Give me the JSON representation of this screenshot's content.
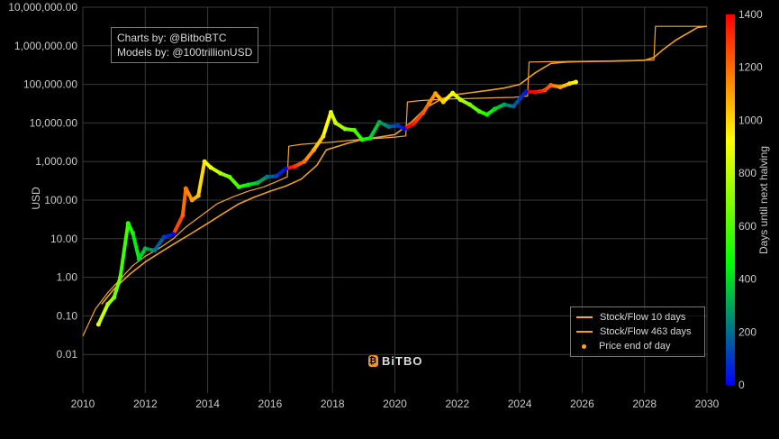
{
  "chart_data": {
    "type": "scatter",
    "yscale": "log",
    "ylabel": "USD",
    "xlim": [
      2010,
      2030
    ],
    "ylim": [
      0.001,
      10000000
    ],
    "x_ticks": [
      "2010",
      "2012",
      "2014",
      "2016",
      "2018",
      "2020",
      "2022",
      "2024",
      "2026",
      "2028",
      "2030"
    ],
    "y_ticks": [
      "10,000,000.00",
      "1,000,000.00",
      "100,000.00",
      "10,000.00",
      "1,000.00",
      "100.00",
      "10.00",
      "1.00",
      "0.10",
      "0.01"
    ],
    "grid": true,
    "legend_position": "bottom-right",
    "colorbar": {
      "label": "Days until next halving",
      "range": [
        0,
        1400
      ],
      "ticks": [
        "1400",
        "1200",
        "1000",
        "800",
        "600",
        "400",
        "200",
        "0"
      ],
      "colors": [
        "#0000ff",
        "#00ff00",
        "#ffff00",
        "#ff0000"
      ]
    },
    "credits": [
      "Charts by: @BitboBTC",
      "Models by: @100trillionUSD"
    ],
    "watermark": "BiTBO",
    "series": [
      {
        "name": "Stock/Flow 10 days",
        "color": "#f5a623",
        "x": [
          2010.0,
          2010.4,
          2010.8,
          2011.2,
          2011.6,
          2012.0,
          2012.5,
          2012.9,
          2013.3,
          2013.8,
          2014.3,
          2014.8,
          2015.3,
          2015.8,
          2016.2,
          2016.55,
          2016.6,
          2017.0,
          2017.5,
          2018.0,
          2018.5,
          2019.0,
          2019.5,
          2020.0,
          2020.35,
          2020.4,
          2020.8,
          2021.3,
          2021.8,
          2022.3,
          2022.8,
          2023.3,
          2023.8,
          2024.25,
          2024.3,
          2024.8,
          2025.3,
          2025.8,
          2026.5,
          2027.2,
          2027.9,
          2028.3,
          2028.35,
          2028.8,
          2029.3,
          2029.8,
          2030.0
        ],
        "y": [
          0.03,
          0.15,
          0.4,
          0.9,
          2.0,
          3.5,
          6.0,
          10,
          20,
          40,
          80,
          120,
          170,
          220,
          300,
          400,
          2500,
          2800,
          3000,
          3200,
          3500,
          3800,
          4000,
          4300,
          4600,
          35000,
          38000,
          40000,
          42000,
          43000,
          44000,
          45000,
          46000,
          50000,
          380000,
          385000,
          390000,
          395000,
          400000,
          410000,
          420000,
          430000,
          3200000,
          3200000,
          3200000,
          3200000,
          3200000
        ]
      },
      {
        "name": "Stock/Flow 463 days",
        "color": "#f0a020",
        "x": [
          2010.6,
          2011.0,
          2011.5,
          2012.0,
          2012.5,
          2013.0,
          2013.5,
          2014.0,
          2014.5,
          2015.0,
          2015.5,
          2016.0,
          2016.5,
          2017.0,
          2017.5,
          2017.8,
          2018.5,
          2019.0,
          2019.5,
          2020.0,
          2020.5,
          2021.0,
          2021.5,
          2022.0,
          2022.5,
          2023.0,
          2023.5,
          2024.0,
          2024.5,
          2025.0,
          2025.5,
          2026.0,
          2026.5,
          2027.0,
          2027.5,
          2028.0,
          2028.3,
          2028.6,
          2029.0,
          2029.5,
          2029.7,
          2030.0
        ],
        "y": [
          0.2,
          0.5,
          1.2,
          2.5,
          4.5,
          8,
          14,
          25,
          45,
          80,
          120,
          170,
          230,
          350,
          800,
          2000,
          3000,
          3800,
          4300,
          5000,
          10000,
          25000,
          42000,
          55000,
          62000,
          70000,
          80000,
          100000,
          200000,
          350000,
          380000,
          390000,
          395000,
          400000,
          410000,
          420000,
          500000,
          800000,
          1400000,
          2400000,
          3000000,
          3200000
        ]
      },
      {
        "name": "Price end of day",
        "color": "#f5a623",
        "x": [
          2010.5,
          2010.8,
          2011.0,
          2011.2,
          2011.45,
          2011.6,
          2011.8,
          2012.0,
          2012.3,
          2012.6,
          2012.9,
          2013.2,
          2013.3,
          2013.5,
          2013.7,
          2013.9,
          2014.1,
          2014.4,
          2014.7,
          2015.0,
          2015.3,
          2015.6,
          2015.9,
          2016.2,
          2016.5,
          2016.8,
          2017.1,
          2017.4,
          2017.7,
          2017.95,
          2018.1,
          2018.4,
          2018.7,
          2018.95,
          2019.2,
          2019.5,
          2019.8,
          2020.1,
          2020.3,
          2020.6,
          2020.9,
          2021.1,
          2021.3,
          2021.55,
          2021.85,
          2022.1,
          2022.4,
          2022.7,
          2022.95,
          2023.2,
          2023.5,
          2023.8,
          2024.0,
          2024.2,
          2024.5,
          2024.8,
          2025.0,
          2025.3,
          2025.6,
          2025.8
        ],
        "y": [
          0.06,
          0.2,
          0.3,
          1.0,
          25,
          14,
          3.0,
          5.5,
          5.0,
          11,
          13,
          40,
          200,
          100,
          130,
          1000,
          700,
          500,
          400,
          220,
          250,
          280,
          400,
          420,
          650,
          750,
          1000,
          2000,
          4500,
          19000,
          10000,
          7000,
          6500,
          3700,
          4000,
          10500,
          8000,
          8500,
          7000,
          9500,
          18000,
          33000,
          58000,
          35000,
          60000,
          40000,
          30000,
          20000,
          16500,
          23000,
          30000,
          27000,
          42000,
          65000,
          63000,
          70000,
          95000,
          85000,
          105000,
          115000
        ]
      }
    ]
  }
}
